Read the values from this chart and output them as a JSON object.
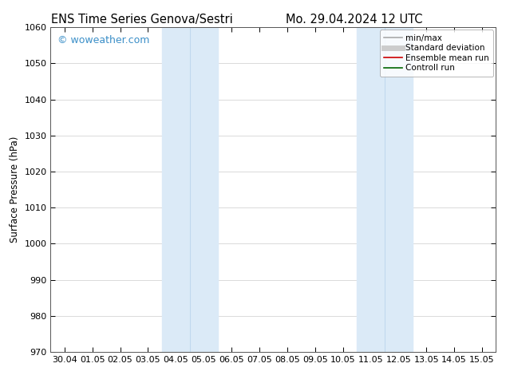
{
  "title_left": "ENS Time Series Genova/Sestri",
  "title_right": "Mo. 29.04.2024 12 UTC",
  "ylabel": "Surface Pressure (hPa)",
  "ylim": [
    970,
    1060
  ],
  "yticks": [
    970,
    980,
    990,
    1000,
    1010,
    1020,
    1030,
    1040,
    1050,
    1060
  ],
  "xtick_labels": [
    "30.04",
    "01.05",
    "02.05",
    "03.05",
    "04.05",
    "05.05",
    "06.05",
    "07.05",
    "08.05",
    "09.05",
    "10.05",
    "11.05",
    "12.05",
    "13.05",
    "14.05",
    "15.05"
  ],
  "shaded_regions": [
    {
      "xstart": 4,
      "xend": 5,
      "color": "#dbeaf7"
    },
    {
      "xstart": 5,
      "xend": 6,
      "color": "#dbeaf7"
    },
    {
      "xstart": 11,
      "xend": 12,
      "color": "#dbeaf7"
    },
    {
      "xstart": 12,
      "xend": 13,
      "color": "#dbeaf7"
    }
  ],
  "shaded_dividers": [
    5,
    12
  ],
  "watermark": "© woweather.com",
  "watermark_color": "#3b8fc8",
  "legend_entries": [
    {
      "label": "min/max",
      "color": "#aaaaaa",
      "lw": 1.2
    },
    {
      "label": "Standard deviation",
      "color": "#cccccc",
      "lw": 5.0
    },
    {
      "label": "Ensemble mean run",
      "color": "#cc0000",
      "lw": 1.2
    },
    {
      "label": "Controll run",
      "color": "#006600",
      "lw": 1.2
    }
  ],
  "background_color": "#ffffff",
  "grid_color": "#cccccc",
  "title_fontsize": 10.5,
  "ylabel_fontsize": 8.5,
  "tick_fontsize": 8,
  "legend_fontsize": 7.5,
  "watermark_fontsize": 9
}
